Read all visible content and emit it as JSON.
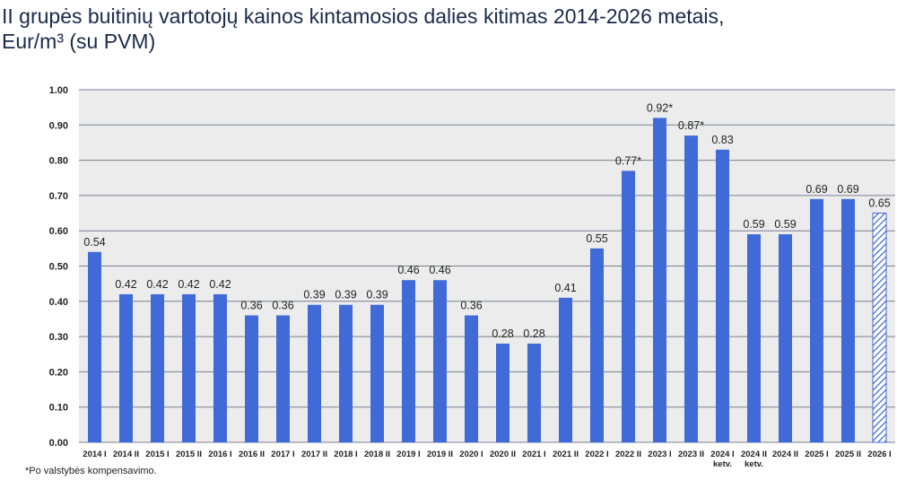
{
  "chart_data": {
    "type": "bar",
    "title": "II grupės buitinių vartotojų kainos kintamosios dalies kitimas 2014-2026 metais,\nEur/m³ (su PVM)",
    "footnote": "*Po valstybės kompensavimo.",
    "categories": [
      "2014 I",
      "2014 II",
      "2015 I",
      "2015 II",
      "2016 I",
      "2016 II",
      "2017 I",
      "2017 II",
      "2018 I",
      "2018 II",
      "2019 I",
      "2019 II",
      "2020 I",
      "2020 II",
      "2021 I",
      "2021 II",
      "2022 I",
      "2022 II",
      "2023 I",
      "2023 II",
      "2024 I\nketv.",
      "2024 II\nketv.",
      "2024 II",
      "2025 I",
      "2025 II",
      "2026 I"
    ],
    "values": [
      0.54,
      0.42,
      0.42,
      0.42,
      0.42,
      0.36,
      0.36,
      0.39,
      0.39,
      0.39,
      0.46,
      0.46,
      0.36,
      0.28,
      0.28,
      0.41,
      0.55,
      0.77,
      0.92,
      0.87,
      0.83,
      0.59,
      0.59,
      0.69,
      0.69,
      0.65
    ],
    "value_labels": [
      "0.54",
      "0.42",
      "0.42",
      "0.42",
      "0.42",
      "0.36",
      "0.36",
      "0.39",
      "0.39",
      "0.39",
      "0.46",
      "0.46",
      "0.36",
      "0.28",
      "0.28",
      "0.41",
      "0.55",
      "0.77*",
      "0.92*",
      "0.87*",
      "0.83",
      "0.59",
      "0.59",
      "0.69",
      "0.69",
      "0.65"
    ],
    "bar_styles": [
      "solid",
      "solid",
      "solid",
      "solid",
      "solid",
      "solid",
      "solid",
      "solid",
      "solid",
      "solid",
      "solid",
      "solid",
      "solid",
      "solid",
      "solid",
      "solid",
      "solid",
      "solid",
      "solid",
      "solid",
      "solid",
      "solid",
      "solid",
      "solid",
      "solid",
      "hatched"
    ],
    "color": "#3f6ad8",
    "ylim": [
      0,
      1
    ],
    "yticks": [
      {
        "value": 0,
        "label": "0.00"
      },
      {
        "value": 0.1,
        "label": "0.10"
      },
      {
        "value": 0.2,
        "label": "0.20"
      },
      {
        "value": 0.3,
        "label": "0.30"
      },
      {
        "value": 0.4,
        "label": "0.40"
      },
      {
        "value": 0.5,
        "label": "0.50"
      },
      {
        "value": 0.6,
        "label": "0.60"
      },
      {
        "value": 0.7,
        "label": "0.70"
      },
      {
        "value": 0.8,
        "label": "0.80"
      },
      {
        "value": 0.9,
        "label": "0.90"
      },
      {
        "value": 1,
        "label": "1.00"
      }
    ],
    "grid": true
  }
}
